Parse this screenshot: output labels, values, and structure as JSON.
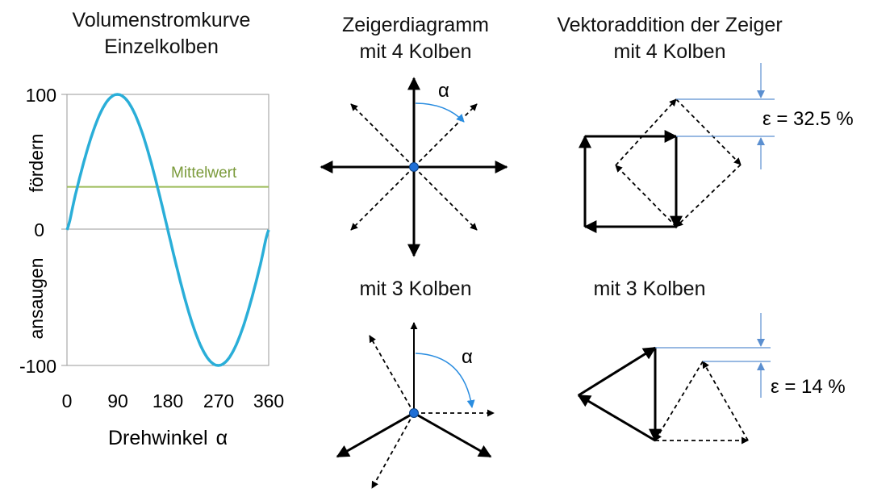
{
  "chart": {
    "title_line1": "Volumenstromkurve",
    "title_line2": "Einzelkolben",
    "xlabel": "Drehwinkel",
    "xlabel_symbol": "α",
    "ylabel_top": "fördern",
    "ylabel_bottom": "ansaugen",
    "mean_label": "Mittelwert",
    "y_ticks": [
      "100",
      "0",
      "-100"
    ],
    "x_ticks": [
      "0",
      "90",
      "180",
      "270",
      "360"
    ]
  },
  "chart_data": {
    "type": "line",
    "x": [
      0,
      15,
      30,
      45,
      60,
      75,
      90,
      105,
      120,
      135,
      150,
      165,
      180,
      195,
      210,
      225,
      240,
      255,
      270,
      285,
      300,
      315,
      330,
      345,
      360
    ],
    "series": [
      {
        "values": [
          0,
          25.9,
          50,
          70.7,
          86.6,
          96.6,
          100,
          96.6,
          86.6,
          70.7,
          50,
          25.9,
          0,
          -25.9,
          -50,
          -70.7,
          -86.6,
          -96.6,
          -100,
          -96.6,
          -86.6,
          -70.7,
          -50,
          -25.9,
          0
        ]
      }
    ],
    "mean_value": 31.8,
    "xlim": [
      0,
      360
    ],
    "ylim": [
      -100,
      100
    ],
    "grid": false,
    "colors": {
      "curve": "#2aaed8",
      "mean": "#9bbb59",
      "axis": "#999999"
    }
  },
  "phasor4": {
    "title_line1": "Zeigerdiagramm",
    "title_line2": "mit 4 Kolben",
    "angle_symbol": "α"
  },
  "phasor3": {
    "title": "mit 3 Kolben",
    "angle_symbol": "α"
  },
  "vector4": {
    "title_line1": "Vektoraddition der Zeiger",
    "title_line2": "mit 4 Kolben",
    "epsilon_label": "ε = 32.5 %"
  },
  "vector3": {
    "title": "mit 3 Kolben",
    "epsilon_label": "ε = 14 %"
  },
  "colors": {
    "dot": "#1f6fd6",
    "arc": "#2a8de0",
    "dim_line": "#5b8fd0"
  }
}
